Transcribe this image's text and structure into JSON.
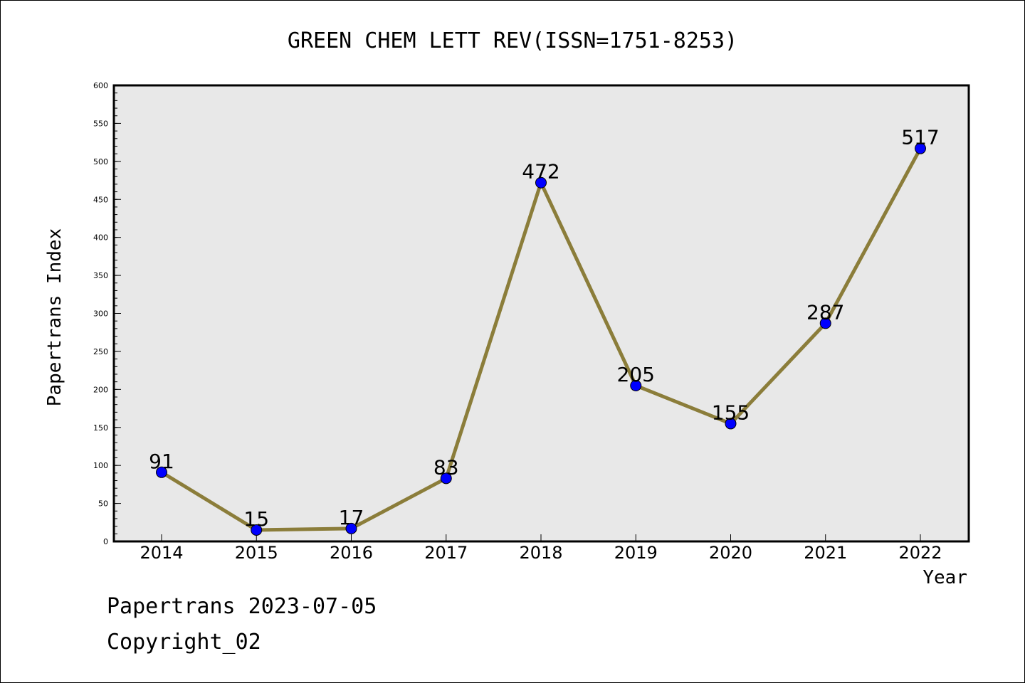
{
  "chart_data": {
    "type": "line",
    "title": "GREEN CHEM LETT REV(ISSN=1751-8253)",
    "xlabel": "Year",
    "ylabel": "Papertrans Index",
    "categories": [
      "2014",
      "2015",
      "2016",
      "2017",
      "2018",
      "2019",
      "2020",
      "2021",
      "2022"
    ],
    "series": [
      {
        "values": [
          91,
          15,
          17,
          83,
          472,
          205,
          155,
          287,
          517
        ]
      }
    ],
    "ylim": [
      0,
      600
    ],
    "yticks": [
      0,
      50,
      100,
      150,
      200,
      250,
      300,
      350,
      400,
      450,
      500,
      550,
      600
    ],
    "grid": false,
    "colors": {
      "line": "#8b7d3a",
      "marker": "#0000ff",
      "plot_background": "#e8e8e8"
    }
  },
  "footer": {
    "line1": "Papertrans 2023-07-05",
    "line2": "Copyright_02"
  }
}
